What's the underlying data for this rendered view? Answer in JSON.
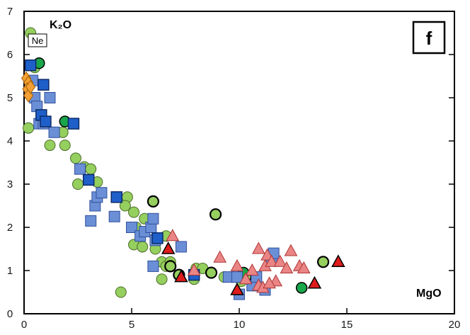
{
  "chart_data": {
    "type": "scatter",
    "title": "",
    "xlabel": "MgO",
    "ylabel": "K₂O",
    "panel_label": "f",
    "annotation": "Ne",
    "xlim": [
      0,
      20
    ],
    "ylim": [
      0,
      7
    ],
    "x_ticks": [
      "0",
      "5",
      "10",
      "15",
      "20"
    ],
    "y_ticks": [
      "0",
      "1",
      "2",
      "3",
      "4",
      "5",
      "6",
      "7"
    ],
    "grid": false,
    "legend": "none",
    "series": [
      {
        "marker": "circle",
        "fill": "#95cf5e",
        "stroke": "#4a6b2a",
        "stroke_width": 1,
        "points": [
          [
            0.3,
            6.5
          ],
          [
            0.5,
            5.7
          ],
          [
            0.2,
            4.3
          ],
          [
            1.2,
            3.9
          ],
          [
            1.8,
            4.2
          ],
          [
            1.9,
            3.9
          ],
          [
            2.4,
            3.6
          ],
          [
            2.8,
            3.4
          ],
          [
            3.1,
            3.35
          ],
          [
            2.5,
            3.0
          ],
          [
            3.4,
            3.05
          ],
          [
            4.8,
            2.7
          ],
          [
            4.7,
            2.5
          ],
          [
            5.1,
            2.35
          ],
          [
            5.6,
            2.2
          ],
          [
            5.2,
            2.0
          ],
          [
            5.1,
            1.6
          ],
          [
            5.5,
            1.55
          ],
          [
            6.1,
            1.75
          ],
          [
            6.6,
            1.8
          ],
          [
            6.1,
            1.5
          ],
          [
            6.4,
            1.2
          ],
          [
            6.6,
            1.1
          ],
          [
            6.8,
            1.2
          ],
          [
            6.4,
            0.8
          ],
          [
            8.0,
            1.05
          ],
          [
            8.3,
            1.05
          ],
          [
            7.9,
            0.8
          ],
          [
            9.3,
            0.85
          ],
          [
            10.1,
            0.75
          ],
          [
            4.5,
            0.5
          ]
        ]
      },
      {
        "marker": "circle",
        "fill": "#95cf5e",
        "stroke": "#000000",
        "stroke_width": 2.2,
        "points": [
          [
            6.0,
            2.6
          ],
          [
            8.9,
            2.3
          ],
          [
            6.8,
            1.1
          ],
          [
            7.2,
            0.9
          ],
          [
            8.7,
            0.95
          ],
          [
            10.3,
            0.85
          ],
          [
            13.9,
            1.2
          ]
        ]
      },
      {
        "marker": "circle",
        "fill": "#1aa64a",
        "stroke": "#000000",
        "stroke_width": 1.5,
        "points": [
          [
            0.7,
            5.8
          ],
          [
            1.9,
            4.45
          ],
          [
            10.2,
            0.95
          ],
          [
            12.9,
            0.6
          ]
        ]
      },
      {
        "marker": "square",
        "fill": "#6b8fd6",
        "stroke": "#2f4f99",
        "stroke_width": 1,
        "points": [
          [
            0.4,
            5.4
          ],
          [
            0.5,
            5.0
          ],
          [
            0.6,
            4.8
          ],
          [
            0.7,
            4.4
          ],
          [
            0.9,
            4.4
          ],
          [
            1.2,
            5.0
          ],
          [
            1.4,
            4.2
          ],
          [
            2.6,
            3.35
          ],
          [
            3.3,
            2.5
          ],
          [
            3.1,
            2.15
          ],
          [
            3.4,
            2.7
          ],
          [
            3.6,
            2.8
          ],
          [
            4.2,
            2.25
          ],
          [
            5.0,
            2.0
          ],
          [
            5.4,
            1.8
          ],
          [
            5.6,
            1.9
          ],
          [
            5.9,
            2.0
          ],
          [
            6.0,
            2.2
          ],
          [
            6.1,
            1.7
          ],
          [
            6.0,
            1.1
          ],
          [
            7.3,
            1.55
          ],
          [
            9.5,
            0.85
          ],
          [
            9.9,
            0.85
          ],
          [
            10.0,
            0.45
          ],
          [
            10.6,
            0.65
          ],
          [
            10.8,
            0.85
          ],
          [
            11.2,
            0.55
          ],
          [
            11.5,
            1.3
          ],
          [
            11.6,
            1.4
          ]
        ]
      },
      {
        "marker": "square",
        "fill": "#1f5fc9",
        "stroke": "#0c2a66",
        "stroke_width": 1.5,
        "points": [
          [
            0.3,
            5.75
          ],
          [
            0.9,
            5.3
          ],
          [
            0.8,
            4.6
          ],
          [
            1.0,
            4.45
          ],
          [
            2.3,
            4.4
          ],
          [
            3.0,
            3.1
          ],
          [
            4.3,
            2.7
          ],
          [
            6.2,
            1.75
          ],
          [
            7.9,
            0.9
          ]
        ]
      },
      {
        "marker": "triangle",
        "fill": "#ea8585",
        "stroke": "#b03535",
        "stroke_width": 1,
        "points": [
          [
            6.9,
            1.8
          ],
          [
            7.9,
            1.0
          ],
          [
            9.1,
            1.3
          ],
          [
            9.9,
            1.1
          ],
          [
            10.3,
            0.8
          ],
          [
            10.6,
            1.0
          ],
          [
            10.9,
            1.5
          ],
          [
            11.2,
            1.1
          ],
          [
            11.3,
            1.35
          ],
          [
            11.5,
            1.2
          ],
          [
            11.7,
            0.75
          ],
          [
            11.9,
            1.2
          ],
          [
            12.2,
            1.05
          ],
          [
            12.4,
            1.45
          ],
          [
            12.8,
            1.1
          ],
          [
            13.0,
            1.05
          ],
          [
            10.9,
            0.65
          ],
          [
            11.1,
            0.6
          ],
          [
            11.4,
            0.7
          ]
        ]
      },
      {
        "marker": "triangle",
        "fill": "#e01b1b",
        "stroke": "#000000",
        "stroke_width": 1.5,
        "points": [
          [
            6.7,
            1.5
          ],
          [
            7.3,
            0.85
          ],
          [
            9.9,
            0.55
          ],
          [
            13.5,
            0.7
          ],
          [
            14.6,
            1.2
          ]
        ]
      },
      {
        "marker": "diamond",
        "fill": "#f2a035",
        "stroke": "#a85f00",
        "stroke_width": 1,
        "points": [
          [
            0.1,
            5.45
          ],
          [
            0.2,
            5.35
          ],
          [
            0.15,
            5.2
          ],
          [
            0.2,
            5.05
          ],
          [
            0.3,
            5.25
          ]
        ]
      }
    ]
  }
}
